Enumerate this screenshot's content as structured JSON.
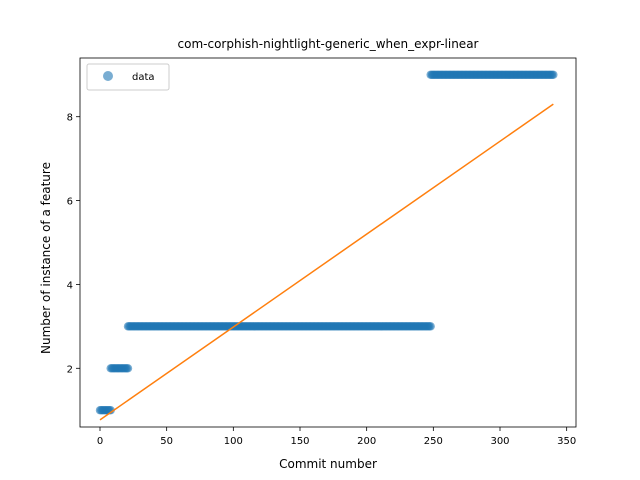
{
  "chart_data": {
    "type": "scatter",
    "title": "com-corphish-nightlight-generic_when_expr-linear",
    "xlabel": "Commit number",
    "ylabel": "Number of instance of a feature",
    "xlim": [
      -15,
      357
    ],
    "ylim": [
      0.6,
      9.4
    ],
    "xticks": [
      0,
      50,
      100,
      150,
      200,
      250,
      300,
      350
    ],
    "yticks": [
      2,
      4,
      6,
      8
    ],
    "grid": false,
    "legend": {
      "position": "top-left",
      "entries": [
        "data"
      ]
    },
    "colors": {
      "data": "#1f77b4",
      "fit": "#ff7f0e"
    },
    "series": [
      {
        "name": "data",
        "kind": "scatter",
        "segments": [
          {
            "x_start": 0,
            "x_end": 8,
            "y": 1
          },
          {
            "x_start": 8,
            "x_end": 21,
            "y": 2
          },
          {
            "x_start": 21,
            "x_end": 248,
            "y": 3
          },
          {
            "x_start": 248,
            "x_end": 340,
            "y": 9
          }
        ]
      },
      {
        "kind": "line",
        "x": [
          0,
          340
        ],
        "y": [
          0.77,
          8.3
        ]
      }
    ]
  }
}
